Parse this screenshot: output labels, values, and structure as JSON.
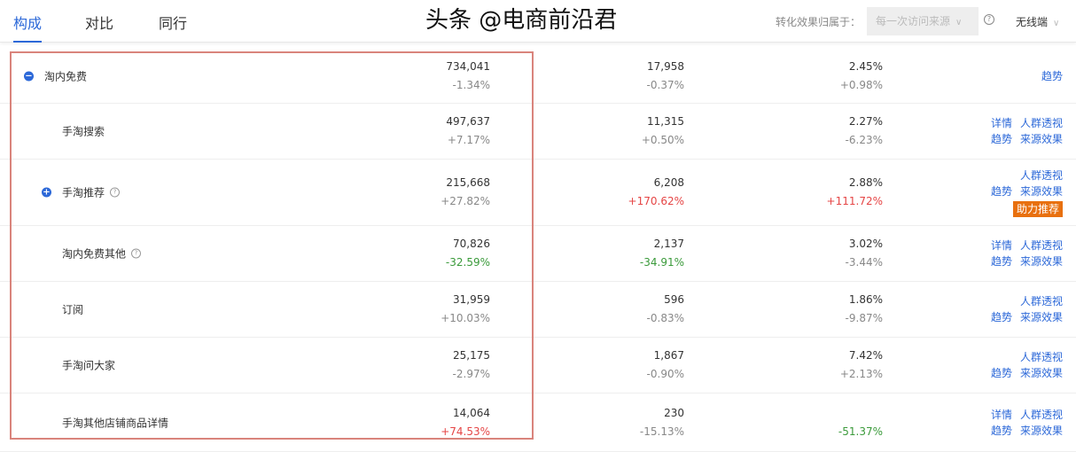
{
  "tabs": [
    {
      "label": "构成",
      "active": true
    },
    {
      "label": "对比"
    },
    {
      "label": "同行"
    }
  ],
  "toolbar": {
    "attr_label": "转化效果归属于：",
    "attr_value": "每一次访问来源",
    "help": "?",
    "device": "无线端"
  },
  "accent": "#2c68d8",
  "up_color": "#e54545",
  "down_color": "#3a9a3a",
  "rows": [
    {
      "name": "淘内免费",
      "expand": "minus",
      "c1": "734,041",
      "c1d": "-1.34%",
      "c2": "17,958",
      "c2d": "-0.37%",
      "c3": "2.45%",
      "c3d": "+0.98%",
      "actions": [
        [
          "趋势"
        ]
      ]
    },
    {
      "name": "手淘搜索",
      "c1": "497,637",
      "c1d": "+7.17%",
      "c2": "11,315",
      "c2d": "+0.50%",
      "c3": "2.27%",
      "c3d": "-6.23%",
      "actions": [
        [
          "详情",
          "人群透视"
        ],
        [
          "趋势",
          "来源效果"
        ]
      ]
    },
    {
      "name": "手淘推荐",
      "expand": "plus",
      "help": true,
      "c1": "215,668",
      "c1d": "+27.82%",
      "c2": "6,208",
      "c2d": "+170.62%",
      "c2c": "up",
      "c3": "2.88%",
      "c3d": "+111.72%",
      "c3c": "up",
      "actions": [
        [
          "人群透视"
        ],
        [
          "趋势",
          "来源效果"
        ]
      ],
      "badge": "助力推荐"
    },
    {
      "name": "淘内免费其他",
      "help": true,
      "c1": "70,826",
      "c1d": "-32.59%",
      "c1c": "dn",
      "c2": "2,137",
      "c2d": "-34.91%",
      "c2c": "dn",
      "c3": "3.02%",
      "c3d": "-3.44%",
      "actions": [
        [
          "详情",
          "人群透视"
        ],
        [
          "趋势",
          "来源效果"
        ]
      ]
    },
    {
      "name": "订阅",
      "c1": "31,959",
      "c1d": "+10.03%",
      "c2": "596",
      "c2d": "-0.83%",
      "c3": "1.86%",
      "c3d": "-9.87%",
      "actions": [
        [
          "人群透视"
        ],
        [
          "趋势",
          "来源效果"
        ]
      ]
    },
    {
      "name": "手淘问大家",
      "c1": "25,175",
      "c1d": "-2.97%",
      "c2": "1,867",
      "c2d": "-0.90%",
      "c3": "7.42%",
      "c3d": "+2.13%",
      "actions": [
        [
          "人群透视"
        ],
        [
          "趋势",
          "来源效果"
        ]
      ]
    },
    {
      "name": "手淘其他店铺商品详情",
      "c1": "14,064",
      "c1d": "+74.53%",
      "c1c": "up",
      "c2": "230",
      "c2d": "-15.13%",
      "c3": "",
      "c3d": "-51.37%",
      "c3c": "dn",
      "actions": [
        [
          "详情",
          "人群透视"
        ],
        [
          "趋势",
          "来源效果"
        ]
      ]
    }
  ],
  "watermark": "头条 @电商前沿君"
}
